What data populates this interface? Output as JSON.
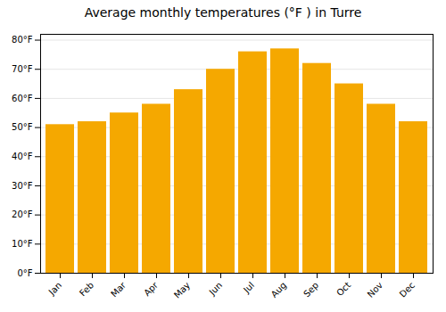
{
  "chart_data": {
    "type": "bar",
    "title": "Average monthly temperatures (°F ) in Turre",
    "categories": [
      "Jan",
      "Feb",
      "Mar",
      "Apr",
      "May",
      "Jun",
      "Jul",
      "Aug",
      "Sep",
      "Oct",
      "Nov",
      "Dec"
    ],
    "values": [
      51,
      52,
      55,
      58,
      63,
      70,
      76,
      77,
      72,
      65,
      58,
      52
    ],
    "color": "#F5A800",
    "ylim": [
      0,
      82
    ],
    "yticks": [
      {
        "value": 0,
        "label": "0°F"
      },
      {
        "value": 10,
        "label": "10°F"
      },
      {
        "value": 20,
        "label": "20°F"
      },
      {
        "value": 30,
        "label": "30°F"
      },
      {
        "value": 40,
        "label": "40°F"
      },
      {
        "value": 50,
        "label": "50°F"
      },
      {
        "value": 60,
        "label": "60°F"
      },
      {
        "value": 70,
        "label": "70°F"
      },
      {
        "value": 80,
        "label": "80°F"
      }
    ],
    "grid": true
  }
}
